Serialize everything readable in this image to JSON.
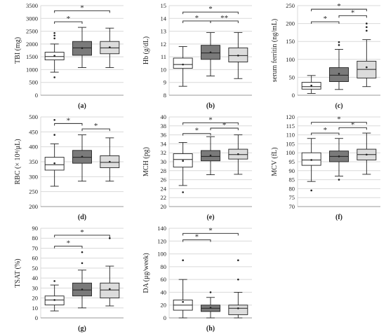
{
  "colors": {
    "group1": "#ffffff",
    "group2": "#7a7a7a",
    "group3": "#dcdcdc",
    "gridline": "#d9d9d9",
    "stroke": "#222222"
  },
  "chart_data": [
    {
      "type": "box",
      "panel_label": "(a)",
      "ylabel": "TBI (mg)",
      "ylim": [
        0,
        3500
      ],
      "yticks": [
        0,
        500,
        1000,
        1500,
        2000,
        2500,
        3000,
        3500
      ],
      "grid": true,
      "boxes": [
        {
          "whisker_low": 900,
          "q1": 1380,
          "median": 1510,
          "q3": 1680,
          "whisker_high": 2000,
          "mean": 1540,
          "outliers": [
            700,
            2220,
            2330,
            2430
          ]
        },
        {
          "whisker_low": 1080,
          "q1": 1560,
          "median": 1850,
          "q3": 2100,
          "whisker_high": 2650,
          "mean": 1840,
          "outliers": []
        },
        {
          "whisker_low": 1080,
          "q1": 1620,
          "median": 1850,
          "q3": 2100,
          "whisker_high": 2620,
          "mean": 1870,
          "outliers": []
        }
      ],
      "significance": [
        {
          "from": 1,
          "to": 2,
          "label": "*",
          "y": 2870
        },
        {
          "from": 1,
          "to": 3,
          "label": "*",
          "y": 3300
        }
      ]
    },
    {
      "type": "box",
      "panel_label": "(b)",
      "ylabel": "Hb (g/dL)",
      "ylim": [
        8,
        15
      ],
      "yticks": [
        8,
        9,
        10,
        11,
        12,
        13,
        14,
        15
      ],
      "grid": true,
      "boxes": [
        {
          "whisker_low": 8.7,
          "q1": 10.1,
          "median": 10.4,
          "q3": 10.9,
          "whisker_high": 11.8,
          "mean": 10.4,
          "outliers": []
        },
        {
          "whisker_low": 9.5,
          "q1": 10.8,
          "median": 11.3,
          "q3": 11.9,
          "whisker_high": 12.9,
          "mean": 11.35,
          "outliers": []
        },
        {
          "whisker_low": 9.3,
          "q1": 10.6,
          "median": 11.1,
          "q3": 11.7,
          "whisker_high": 12.9,
          "mean": 11.1,
          "outliers": []
        }
      ],
      "significance": [
        {
          "from": 1,
          "to": 2,
          "label": "*",
          "y": 13.8
        },
        {
          "from": 2,
          "to": 3,
          "label": "**",
          "y": 13.8
        },
        {
          "from": 1,
          "to": 3,
          "label": "*",
          "y": 14.5
        }
      ]
    },
    {
      "type": "box",
      "panel_label": "(c)",
      "ylabel": "serum ferritin (ng/mL)",
      "ylim": [
        0,
        250
      ],
      "yticks": [
        0,
        50,
        100,
        150,
        200,
        250
      ],
      "grid": true,
      "boxes": [
        {
          "whisker_low": 5,
          "q1": 17,
          "median": 24,
          "q3": 36,
          "whisker_high": 55,
          "mean": 27,
          "outliers": []
        },
        {
          "whisker_low": 16,
          "q1": 38,
          "median": 56,
          "q3": 77,
          "whisker_high": 128,
          "mean": 60,
          "outliers": [
            140,
            148
          ]
        },
        {
          "whisker_low": 24,
          "q1": 48,
          "median": 72,
          "q3": 95,
          "whisker_high": 155,
          "mean": 78,
          "outliers": [
            180,
            190,
            200
          ]
        }
      ],
      "significance": [
        {
          "from": 1,
          "to": 2,
          "label": "*",
          "y": 205
        },
        {
          "from": 2,
          "to": 3,
          "label": "*",
          "y": 222
        },
        {
          "from": 1,
          "to": 3,
          "label": "*",
          "y": 240
        }
      ]
    },
    {
      "type": "box",
      "panel_label": "(d)",
      "ylabel": "RBC (× 10⁴/μL)",
      "ylim": [
        200,
        500
      ],
      "yticks": [
        200,
        250,
        300,
        350,
        400,
        450,
        500
      ],
      "grid": true,
      "boxes": [
        {
          "whisker_low": 268,
          "q1": 322,
          "median": 340,
          "q3": 365,
          "whisker_high": 410,
          "mean": 345,
          "outliers": [
            440,
            490
          ]
        },
        {
          "whisker_low": 285,
          "q1": 345,
          "median": 365,
          "q3": 388,
          "whisker_high": 440,
          "mean": 367,
          "outliers": []
        },
        {
          "whisker_low": 285,
          "q1": 330,
          "median": 348,
          "q3": 370,
          "whisker_high": 430,
          "mean": 350,
          "outliers": []
        }
      ],
      "significance": [
        {
          "from": 1,
          "to": 2,
          "label": "*",
          "y": 478
        },
        {
          "from": 2,
          "to": 3,
          "label": "*",
          "y": 460
        }
      ]
    },
    {
      "type": "box",
      "panel_label": "(e)",
      "ylabel": "MCH (pg)",
      "ylim": [
        20,
        40
      ],
      "yticks": [
        20,
        22,
        24,
        26,
        28,
        30,
        32,
        34,
        36,
        38,
        40
      ],
      "grid": true,
      "boxes": [
        {
          "whisker_low": 24.7,
          "q1": 28.8,
          "median": 30.5,
          "q3": 31.8,
          "whisker_high": 34.3,
          "mean": 30.2,
          "outliers": [
            23.2
          ]
        },
        {
          "whisker_low": 27.1,
          "q1": 30.2,
          "median": 31.2,
          "q3": 32.5,
          "whisker_high": 35.6,
          "mean": 31.4,
          "outliers": []
        },
        {
          "whisker_low": 27.2,
          "q1": 30.6,
          "median": 31.6,
          "q3": 32.8,
          "whisker_high": 36.0,
          "mean": 31.7,
          "outliers": []
        }
      ],
      "significance": [
        {
          "from": 1,
          "to": 2,
          "label": "*",
          "y": 36.3
        },
        {
          "from": 2,
          "to": 3,
          "label": "*",
          "y": 37.5
        },
        {
          "from": 1,
          "to": 3,
          "label": "*",
          "y": 38.7
        }
      ]
    },
    {
      "type": "box",
      "panel_label": "(f)",
      "ylabel": "MCV (fL)",
      "ylim": [
        70,
        120
      ],
      "yticks": [
        70,
        75,
        80,
        85,
        90,
        95,
        100,
        105,
        110,
        115,
        120
      ],
      "grid": true,
      "boxes": [
        {
          "whisker_low": 84,
          "q1": 93,
          "median": 96,
          "q3": 100,
          "whisker_high": 108,
          "mean": 96,
          "outliers": [
            79
          ]
        },
        {
          "whisker_low": 87,
          "q1": 95,
          "median": 98,
          "q3": 101,
          "whisker_high": 108,
          "mean": 98,
          "outliers": [
            85
          ]
        },
        {
          "whisker_low": 88,
          "q1": 96,
          "median": 99,
          "q3": 102,
          "whisker_high": 111,
          "mean": 99,
          "outliers": []
        }
      ],
      "significance": [
        {
          "from": 1,
          "to": 2,
          "label": "*",
          "y": 111
        },
        {
          "from": 2,
          "to": 3,
          "label": "*",
          "y": 114
        },
        {
          "from": 1,
          "to": 3,
          "label": "*",
          "y": 117
        }
      ]
    },
    {
      "type": "box",
      "panel_label": "(g)",
      "ylabel": "TSAT (%)",
      "ylim": [
        0,
        90
      ],
      "yticks": [
        0,
        10,
        20,
        30,
        40,
        50,
        60,
        70,
        80,
        90
      ],
      "grid": true,
      "boxes": [
        {
          "whisker_low": 7,
          "q1": 13,
          "median": 18,
          "q3": 22,
          "whisker_high": 33,
          "mean": 18,
          "outliers": [
            37
          ]
        },
        {
          "whisker_low": 10,
          "q1": 22,
          "median": 28,
          "q3": 35,
          "whisker_high": 48,
          "mean": 28.5,
          "outliers": [
            55,
            66
          ]
        },
        {
          "whisker_low": 12,
          "q1": 20,
          "median": 28,
          "q3": 35,
          "whisker_high": 52,
          "mean": 29,
          "outliers": [
            80
          ]
        }
      ],
      "significance": [
        {
          "from": 1,
          "to": 2,
          "label": "*",
          "y": 72
        },
        {
          "from": 1,
          "to": 3,
          "label": "*",
          "y": 83
        }
      ]
    },
    {
      "type": "box",
      "panel_label": "(h)",
      "ylabel": "DA (μg/week)",
      "ylim": [
        0,
        140
      ],
      "yticks": [
        0,
        20,
        40,
        60,
        80,
        100,
        120,
        140
      ],
      "grid": true,
      "boxes": [
        {
          "whisker_low": 0,
          "q1": 12,
          "median": 20,
          "q3": 28,
          "whisker_high": 60,
          "mean": 25,
          "outliers": [
            90
          ]
        },
        {
          "whisker_low": 0,
          "q1": 10,
          "median": 15,
          "q3": 20,
          "whisker_high": 32,
          "mean": 16,
          "outliers": [
            40
          ]
        },
        {
          "whisker_low": 0,
          "q1": 5,
          "median": 15,
          "q3": 20,
          "whisker_high": 40,
          "mean": 15,
          "outliers": [
            60,
            90
          ]
        }
      ],
      "significance": [
        {
          "from": 1,
          "to": 2,
          "label": "*",
          "y": 122
        },
        {
          "from": 1,
          "to": 3,
          "label": "*",
          "y": 132
        }
      ]
    }
  ]
}
